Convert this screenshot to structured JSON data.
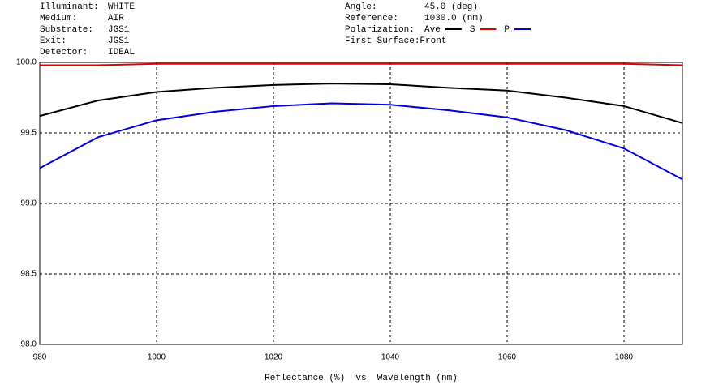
{
  "chart_data": {
    "type": "line",
    "info_left": [
      {
        "label": "Illuminant:",
        "value": "WHITE"
      },
      {
        "label": "Medium:",
        "value": "AIR"
      },
      {
        "label": "Substrate:",
        "value": "JGS1"
      },
      {
        "label": "Exit:",
        "value": "JGS1"
      },
      {
        "label": "Detector:",
        "value": "IDEAL"
      }
    ],
    "info_right": [
      {
        "label": "Angle:",
        "value": "45.0 (deg)"
      },
      {
        "label": "Reference:",
        "value": "1030.0 (nm)"
      },
      {
        "label": "First Surface:",
        "value": "Front"
      }
    ],
    "legend_label": "Polarization:",
    "x_label": "Reflectance (%)  vs  Wavelength (nm)",
    "x": [
      980,
      990,
      1000,
      1010,
      1020,
      1030,
      1040,
      1050,
      1060,
      1070,
      1080,
      1090
    ],
    "series": [
      {
        "name": "Ave",
        "color": "#000000",
        "values": [
          99.62,
          99.73,
          99.79,
          99.82,
          99.84,
          99.85,
          99.845,
          99.82,
          99.8,
          99.75,
          99.69,
          99.57
        ]
      },
      {
        "name": "S",
        "color": "#e00000",
        "values": [
          99.98,
          99.98,
          99.99,
          99.99,
          99.99,
          99.99,
          99.99,
          99.99,
          99.99,
          99.99,
          99.99,
          99.98
        ]
      },
      {
        "name": "P",
        "color": "#0000e0",
        "values": [
          99.25,
          99.47,
          99.59,
          99.65,
          99.69,
          99.71,
          99.7,
          99.66,
          99.61,
          99.52,
          99.39,
          99.17
        ]
      }
    ],
    "xlim": [
      980,
      1090
    ],
    "xticks": [
      980,
      1000,
      1020,
      1040,
      1060,
      1080
    ],
    "ylim": [
      98.0,
      100.0
    ],
    "yticks": [
      {
        "value": 98.0,
        "label": "98.0"
      },
      98.5,
      {
        "value": 99.0,
        "label": "99.0"
      },
      99.5,
      {
        "value": 100.0,
        "label": "100.0"
      }
    ],
    "grid": true
  }
}
